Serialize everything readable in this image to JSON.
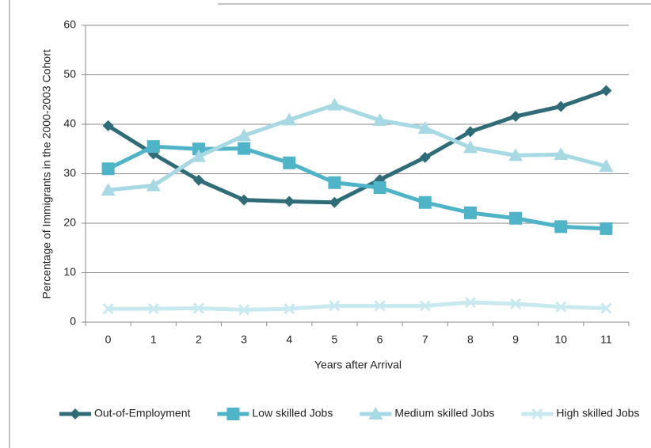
{
  "chart_data": {
    "type": "line",
    "y_label": "Percentage of Immigrants in the 2000-2003 Cohort",
    "x_label": "Years after Arrival",
    "categories": [
      "0",
      "1",
      "2",
      "3",
      "4",
      "5",
      "6",
      "7",
      "8",
      "9",
      "10",
      "11"
    ],
    "ylim": [
      0,
      60
    ],
    "yticks": [
      0,
      10,
      20,
      30,
      40,
      50,
      60
    ],
    "grid": true,
    "legend": "bottom",
    "series": [
      {
        "name": "Out-of-Employment",
        "color": "#2f6c78",
        "marker": "diamond",
        "values": [
          39.7,
          34,
          28.7,
          24.7,
          24.4,
          24.2,
          28.8,
          33.3,
          38.5,
          41.6,
          43.6,
          46.8
        ]
      },
      {
        "name": "Low skilled Jobs",
        "color": "#4fb4c8",
        "marker": "square",
        "values": [
          31,
          35.5,
          35,
          35.1,
          32.2,
          28.2,
          27.2,
          24.2,
          22.1,
          21,
          19.3,
          18.9
        ]
      },
      {
        "name": "Medium skilled Jobs",
        "color": "#a7d9e4",
        "marker": "triangle",
        "values": [
          26.7,
          27.6,
          33.5,
          37.7,
          40.9,
          43.9,
          40.8,
          39.2,
          35.3,
          33.7,
          33.9,
          31.5
        ]
      },
      {
        "name": "High skilled Jobs",
        "color": "#c9e9f1",
        "marker": "cross",
        "values": [
          2.7,
          2.7,
          2.8,
          2.5,
          2.7,
          3.3,
          3.3,
          3.3,
          4,
          3.7,
          3.1,
          2.8
        ]
      }
    ]
  }
}
